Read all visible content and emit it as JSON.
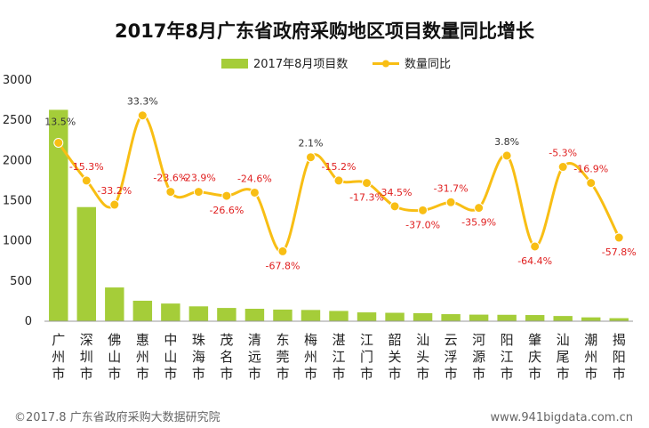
{
  "chart_data": {
    "type": "bar+line",
    "title": "2017年8月广东省政府采购地区项目数量同比增长",
    "legend": {
      "bar_label": "2017年8月项目数",
      "line_label": "数量同比",
      "placement": "top-center"
    },
    "categories": [
      "广州市",
      "深圳市",
      "佛山市",
      "惠州市",
      "中山市",
      "珠海市",
      "茂名市",
      "清远市",
      "东莞市",
      "梅州市",
      "湛江市",
      "江门市",
      "韶关市",
      "汕头市",
      "云浮市",
      "河源市",
      "阳江市",
      "肇庆市",
      "汕尾市",
      "潮州市",
      "揭阳市"
    ],
    "values": [
      2630,
      1420,
      420,
      255,
      220,
      185,
      165,
      155,
      145,
      140,
      128,
      110,
      105,
      100,
      88,
      82,
      80,
      77,
      65,
      48,
      38
    ],
    "growth_labels": [
      "13.5%",
      "-15.3%",
      "-33.2%",
      "33.3%",
      "-23.6%",
      "-23.9%",
      "-26.6%",
      "-24.6%",
      "-67.8%",
      "2.1%",
      "-15.2%",
      "-17.3%",
      "-34.5%",
      "-37.0%",
      "-31.7%",
      "-35.9%",
      "3.8%",
      "-64.4%",
      "-5.3%",
      "-16.9%",
      "-57.8%"
    ],
    "growth_line_level": [
      2220,
      1750,
      1450,
      2560,
      1610,
      1610,
      1560,
      1600,
      870,
      2040,
      1750,
      1720,
      1430,
      1380,
      1480,
      1410,
      2060,
      930,
      1920,
      1720,
      1040
    ],
    "ylim": [
      0,
      3000
    ],
    "yticks": [
      "0",
      "500",
      "1000",
      "1500",
      "2000",
      "2500",
      "3000"
    ],
    "grid": false,
    "colors": {
      "bar": "#a5cd39",
      "line": "#f8be14",
      "negative_label": "#e02020",
      "positive_label": "#333333"
    }
  },
  "footer": {
    "left": "©2017.8 广东省政府采购大数据研究院",
    "right": "www.941bigdata.com.cn"
  }
}
